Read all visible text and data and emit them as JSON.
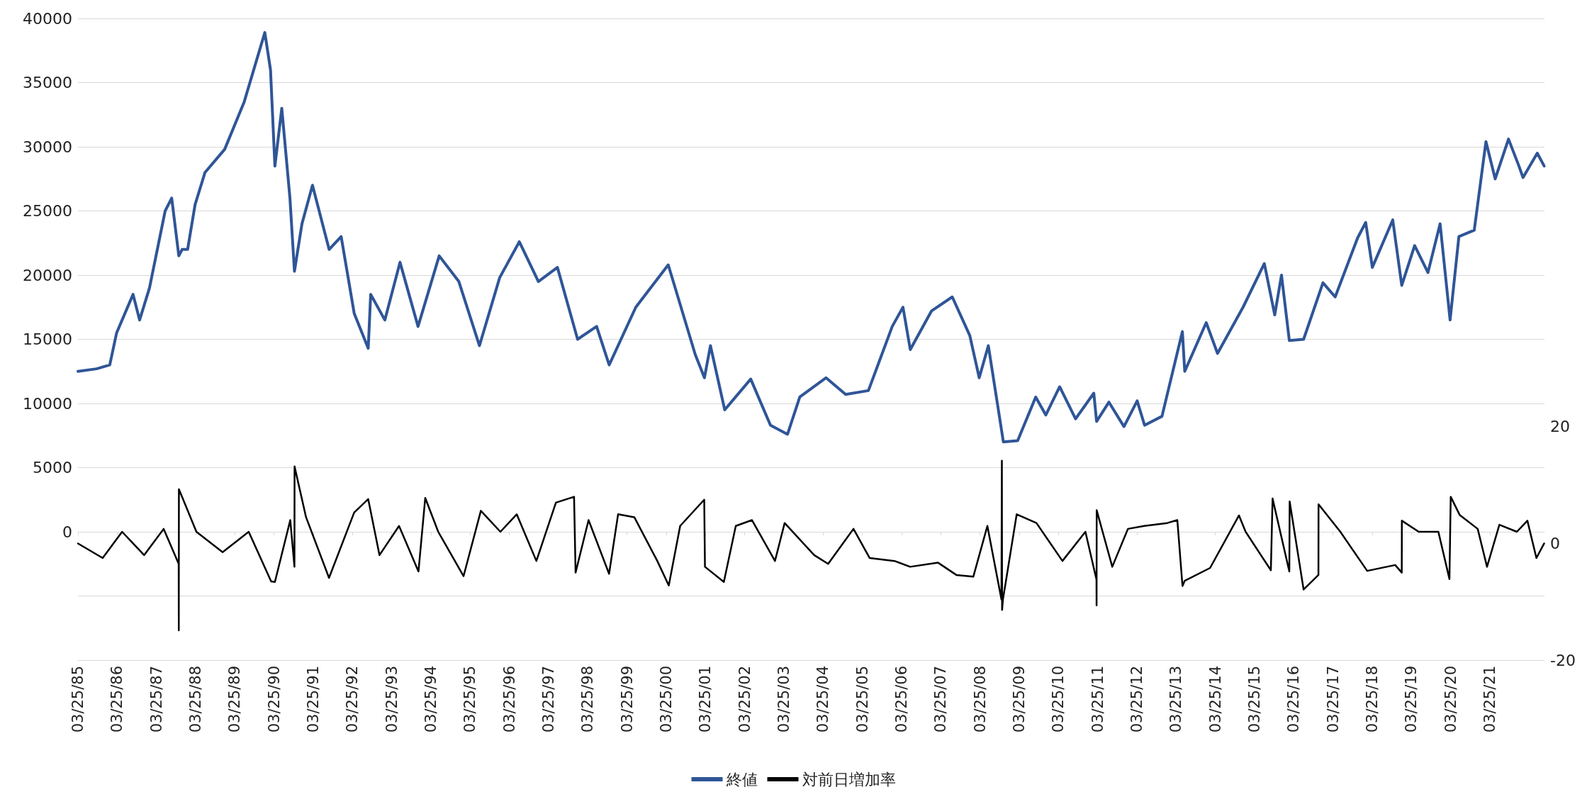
{
  "chart_data": {
    "type": "line",
    "xlim": [
      "1985-03-25",
      "2022-08-15"
    ],
    "xticks": [
      {
        "value": "1985-03-25",
        "label": "03/25/85"
      },
      {
        "value": "1986-03-25",
        "label": "03/25/86"
      },
      {
        "value": "1987-03-25",
        "label": "03/25/87"
      },
      {
        "value": "1988-03-25",
        "label": "03/25/88"
      },
      {
        "value": "1989-03-25",
        "label": "03/25/89"
      },
      {
        "value": "1990-03-25",
        "label": "03/25/90"
      },
      {
        "value": "1991-03-25",
        "label": "03/25/91"
      },
      {
        "value": "1992-03-25",
        "label": "03/25/92"
      },
      {
        "value": "1993-03-25",
        "label": "03/25/93"
      },
      {
        "value": "1994-03-25",
        "label": "03/25/94"
      },
      {
        "value": "1995-03-25",
        "label": "03/25/95"
      },
      {
        "value": "1996-03-25",
        "label": "03/25/96"
      },
      {
        "value": "1997-03-25",
        "label": "03/25/97"
      },
      {
        "value": "1998-03-25",
        "label": "03/25/98"
      },
      {
        "value": "1999-03-25",
        "label": "03/25/99"
      },
      {
        "value": "2000-03-25",
        "label": "03/25/00"
      },
      {
        "value": "2001-03-25",
        "label": "03/25/01"
      },
      {
        "value": "2002-03-25",
        "label": "03/25/02"
      },
      {
        "value": "2003-03-25",
        "label": "03/25/03"
      },
      {
        "value": "2004-03-25",
        "label": "03/25/04"
      },
      {
        "value": "2005-03-25",
        "label": "03/25/05"
      },
      {
        "value": "2006-03-25",
        "label": "03/25/06"
      },
      {
        "value": "2007-03-25",
        "label": "03/25/07"
      },
      {
        "value": "2008-03-25",
        "label": "03/25/08"
      },
      {
        "value": "2009-03-25",
        "label": "03/25/09"
      },
      {
        "value": "2010-03-25",
        "label": "03/25/10"
      },
      {
        "value": "2011-03-25",
        "label": "03/25/11"
      },
      {
        "value": "2012-03-25",
        "label": "03/25/12"
      },
      {
        "value": "2013-03-25",
        "label": "03/25/13"
      },
      {
        "value": "2014-03-25",
        "label": "03/25/14"
      },
      {
        "value": "2015-03-25",
        "label": "03/25/15"
      },
      {
        "value": "2016-03-25",
        "label": "03/25/16"
      },
      {
        "value": "2017-03-25",
        "label": "03/25/17"
      },
      {
        "value": "2018-03-25",
        "label": "03/25/18"
      },
      {
        "value": "2019-03-25",
        "label": "03/25/19"
      },
      {
        "value": "2020-03-25",
        "label": "03/25/20"
      },
      {
        "value": "2021-03-25",
        "label": "03/25/21"
      }
    ],
    "ylim": [
      -10000,
      40000
    ],
    "yticks": [
      {
        "value": -10000,
        "label": null
      },
      {
        "value": -5000,
        "label": null
      },
      0,
      5000,
      10000,
      15000,
      20000,
      25000,
      30000,
      35000,
      40000
    ],
    "y2lim": [
      -20,
      90
    ],
    "y2ticks": [
      -20,
      0,
      20
    ],
    "grid": "y",
    "legend": "bottom",
    "marker": "none",
    "line_style": "solid",
    "series": [
      {
        "name": "終値",
        "color": "#2f5597",
        "x": [
          "1985-03-25",
          "1985-09-15",
          "1986-01-15",
          "1986-03-20",
          "1986-08-20",
          "1986-10-20",
          "1987-01-20",
          "1987-06-15",
          "1987-08-15",
          "1987-10-20",
          "1987-11-20",
          "1988-01-10",
          "1988-03-20",
          "1988-06-20",
          "1988-12-20",
          "1989-06-20",
          "1989-12-29",
          "1990-02-20",
          "1990-04-02",
          "1990-06-05",
          "1990-08-20",
          "1990-10-01",
          "1990-12-10",
          "1991-03-18",
          "1991-08-20",
          "1991-12-10",
          "1992-04-10",
          "1992-08-18",
          "1992-09-10",
          "1993-01-20",
          "1993-06-10",
          "1993-11-25",
          "1994-06-10",
          "1994-12-10",
          "1995-06-20",
          "1995-12-25",
          "1996-06-25",
          "1996-12-20",
          "1997-06-15",
          "1997-12-20",
          "1998-06-15",
          "1998-10-10",
          "1999-06-15",
          "2000-04-12",
          "2000-12-20",
          "2001-03-15",
          "2001-05-10",
          "2001-09-20",
          "2002-05-20",
          "2002-11-20",
          "2003-04-28",
          "2003-08-20",
          "2004-04-20",
          "2004-10-20",
          "2005-05-20",
          "2005-12-28",
          "2006-04-07",
          "2006-06-14",
          "2006-12-28",
          "2007-07-10",
          "2007-12-20",
          "2008-03-17",
          "2008-06-10",
          "2008-10-28",
          "2009-03-10",
          "2009-08-25",
          "2009-11-27",
          "2010-04-05",
          "2010-08-31",
          "2011-02-17",
          "2011-03-15",
          "2011-07-08",
          "2011-11-25",
          "2012-03-27",
          "2012-06-04",
          "2012-11-13",
          "2013-05-22",
          "2013-06-13",
          "2013-12-30",
          "2014-04-14",
          "2014-12-08",
          "2015-06-24",
          "2015-09-29",
          "2015-12-01",
          "2016-02-12",
          "2016-06-24",
          "2016-12-21",
          "2017-04-14",
          "2017-11-09",
          "2018-01-23",
          "2018-03-26",
          "2018-10-02",
          "2018-12-25",
          "2019-04-24",
          "2019-08-26",
          "2019-12-17",
          "2020-03-19",
          "2020-06-09",
          "2020-10-30",
          "2021-02-16",
          "2021-05-13",
          "2021-09-14",
          "2021-12-20",
          "2022-01-27",
          "2022-06-09",
          "2022-08-12"
        ],
        "values": [
          12500,
          12700,
          13000,
          15500,
          18500,
          16500,
          19000,
          25000,
          26000,
          21500,
          22000,
          22000,
          25500,
          28000,
          29800,
          33500,
          38900,
          36000,
          28500,
          33000,
          26000,
          20300,
          24000,
          27000,
          22000,
          23000,
          17000,
          14300,
          18500,
          16500,
          21000,
          16000,
          21500,
          19500,
          14500,
          19800,
          22600,
          19500,
          20600,
          15000,
          16000,
          13000,
          17500,
          20800,
          13800,
          12000,
          14500,
          9500,
          11900,
          8300,
          7600,
          10500,
          12000,
          10700,
          11000,
          16000,
          17500,
          14200,
          17200,
          18300,
          15300,
          12000,
          14500,
          7000,
          7100,
          10500,
          9100,
          11300,
          8800,
          10800,
          8600,
          10100,
          8200,
          10200,
          8300,
          9000,
          15600,
          12500,
          16300,
          13900,
          17500,
          20900,
          16900,
          20000,
          14900,
          15000,
          19400,
          18300,
          22900,
          24100,
          20600,
          24300,
          19200,
          22300,
          20200,
          24000,
          16500,
          23000,
          23500,
          30400,
          27500,
          30600,
          28500,
          27600,
          29500,
          28500
        ]
      },
      {
        "name": "対前日増加率",
        "color": "#000000",
        "axis": "y2",
        "x": [
          "1985-03-25",
          "1985-11-10",
          "1986-05-10",
          "1986-12-01",
          "1987-06-01",
          "1987-10-19",
          "1987-10-20",
          "1987-10-21",
          "1988-04-01",
          "1988-12-01",
          "1989-08-01",
          "1990-02-26",
          "1990-04-02",
          "1990-08-23",
          "1990-10-01",
          "1990-10-02",
          "1991-01-17",
          "1991-08-19",
          "1992-04-09",
          "1992-08-18",
          "1992-12-01",
          "1993-06-01",
          "1993-11-29",
          "1994-01-31",
          "1994-06-01",
          "1995-01-23",
          "1995-07-03",
          "1996-01-01",
          "1996-06-01",
          "1996-12-01",
          "1997-06-01",
          "1997-11-17",
          "1997-12-01",
          "1998-04-01",
          "1998-10-09",
          "1999-01-01",
          "1999-06-01",
          "2000-01-01",
          "2000-04-17",
          "2000-08-01",
          "2001-03-13",
          "2001-03-20",
          "2001-09-12",
          "2002-01-01",
          "2002-06-01",
          "2003-01-01",
          "2003-04-01",
          "2004-01-01",
          "2004-05-10",
          "2005-01-01",
          "2005-06-01",
          "2006-01-18",
          "2006-06-13",
          "2007-02-28",
          "2007-08-17",
          "2008-01-22",
          "2008-06-01",
          "2008-10-10",
          "2008-10-14",
          "2008-10-16",
          "2008-10-24",
          "2009-03-01",
          "2009-09-01",
          "2010-05-01",
          "2010-12-01",
          "2011-03-14",
          "2011-03-15",
          "2011-03-16",
          "2011-08-08",
          "2012-01-01",
          "2012-06-01",
          "2013-01-01",
          "2013-04-05",
          "2013-05-23",
          "2013-06-13",
          "2014-02-04",
          "2014-10-31",
          "2015-01-01",
          "2015-08-24",
          "2015-09-09",
          "2016-02-12",
          "2016-02-15",
          "2016-06-24",
          "2016-11-09",
          "2016-11-10",
          "2017-06-01",
          "2018-02-06",
          "2018-10-25",
          "2018-12-25",
          "2018-12-26",
          "2019-06-01",
          "2019-12-01",
          "2020-03-13",
          "2020-03-25",
          "2020-06-16",
          "2020-12-01",
          "2021-02-26",
          "2021-06-21",
          "2021-12-01",
          "2022-03-09",
          "2022-06-01",
          "2022-08-12"
        ],
        "values": [
          0,
          -2.5,
          2,
          -2,
          2.5,
          -3.5,
          -14.9,
          9.3,
          2,
          -1.5,
          2,
          -6.5,
          -6.6,
          4,
          -4,
          13.2,
          4.5,
          -5.9,
          5.3,
          7.6,
          -2,
          3,
          -4.8,
          7.8,
          2,
          -5.6,
          5.6,
          2,
          5,
          -3,
          7,
          8,
          -5,
          4,
          -5.2,
          5,
          4.5,
          -3,
          -7.2,
          3,
          7.5,
          -4,
          -6.6,
          3,
          4,
          -3,
          3.5,
          -2,
          -3.5,
          2.5,
          -2.5,
          -3,
          -4,
          -3.3,
          -5.4,
          -5.7,
          3,
          -9.6,
          14.2,
          -11.4,
          -9.6,
          5,
          3.5,
          -3,
          2,
          -6.2,
          -10.6,
          5.7,
          -4,
          2.5,
          3,
          3.5,
          4,
          -7.3,
          -6.4,
          -4.2,
          4.8,
          2,
          -4.6,
          7.7,
          -4.8,
          7.2,
          -7.9,
          -5.4,
          6.7,
          2,
          -4.7,
          -3.7,
          -5,
          3.9,
          2,
          2,
          -6.1,
          8,
          4.9,
          2.5,
          -4,
          3.2,
          2,
          3.9,
          -2.5,
          0
        ]
      }
    ]
  }
}
